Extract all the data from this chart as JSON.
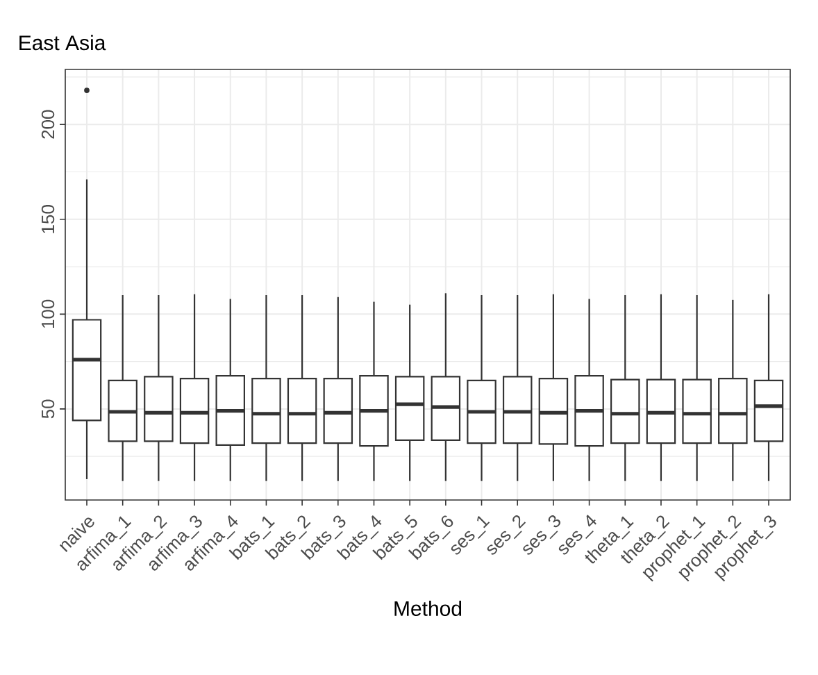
{
  "chart_data": {
    "type": "box",
    "title": "East Asia",
    "xlabel": "Method",
    "categories": [
      "naive",
      "arfima_1",
      "arfima_2",
      "arfima_3",
      "arfima_4",
      "bats_1",
      "bats_2",
      "bats_3",
      "bats_4",
      "bats_5",
      "bats_6",
      "ses_1",
      "ses_2",
      "ses_3",
      "ses_4",
      "theta_1",
      "theta_2",
      "prophet_1",
      "prophet_2",
      "prophet_3"
    ],
    "boxes": [
      {
        "low": 13,
        "q1": 44,
        "median": 76,
        "q3": 97,
        "high": 171,
        "outliers": [
          218
        ]
      },
      {
        "low": 12,
        "q1": 33,
        "median": 48.5,
        "q3": 65,
        "high": 110
      },
      {
        "low": 12,
        "q1": 33,
        "median": 48,
        "q3": 67,
        "high": 110
      },
      {
        "low": 12,
        "q1": 32,
        "median": 48,
        "q3": 66,
        "high": 110.5
      },
      {
        "low": 12,
        "q1": 31,
        "median": 49,
        "q3": 67.5,
        "high": 108
      },
      {
        "low": 12,
        "q1": 32,
        "median": 47.5,
        "q3": 66,
        "high": 110
      },
      {
        "low": 12,
        "q1": 32,
        "median": 47.5,
        "q3": 66,
        "high": 110
      },
      {
        "low": 12,
        "q1": 32,
        "median": 48,
        "q3": 66,
        "high": 109
      },
      {
        "low": 12,
        "q1": 30.5,
        "median": 49,
        "q3": 67.5,
        "high": 106.5
      },
      {
        "low": 12,
        "q1": 33.5,
        "median": 52.5,
        "q3": 67,
        "high": 105
      },
      {
        "low": 12,
        "q1": 33.5,
        "median": 51,
        "q3": 67,
        "high": 111
      },
      {
        "low": 12,
        "q1": 32,
        "median": 48.5,
        "q3": 65,
        "high": 110
      },
      {
        "low": 12,
        "q1": 32,
        "median": 48.5,
        "q3": 67,
        "high": 110
      },
      {
        "low": 12,
        "q1": 31.5,
        "median": 48,
        "q3": 66,
        "high": 110.5
      },
      {
        "low": 12,
        "q1": 30.5,
        "median": 49,
        "q3": 67.5,
        "high": 108
      },
      {
        "low": 12,
        "q1": 32,
        "median": 47.5,
        "q3": 65.5,
        "high": 110
      },
      {
        "low": 12,
        "q1": 32,
        "median": 48,
        "q3": 65.5,
        "high": 110.5
      },
      {
        "low": 12,
        "q1": 32,
        "median": 47.5,
        "q3": 65.5,
        "high": 110
      },
      {
        "low": 12,
        "q1": 32,
        "median": 47.5,
        "q3": 66,
        "high": 107.5
      },
      {
        "low": 12,
        "q1": 33,
        "median": 51.5,
        "q3": 65,
        "high": 110.5
      }
    ],
    "ylim": [
      2,
      229
    ],
    "yticks": [
      50,
      100,
      150,
      200
    ],
    "grid": true
  }
}
